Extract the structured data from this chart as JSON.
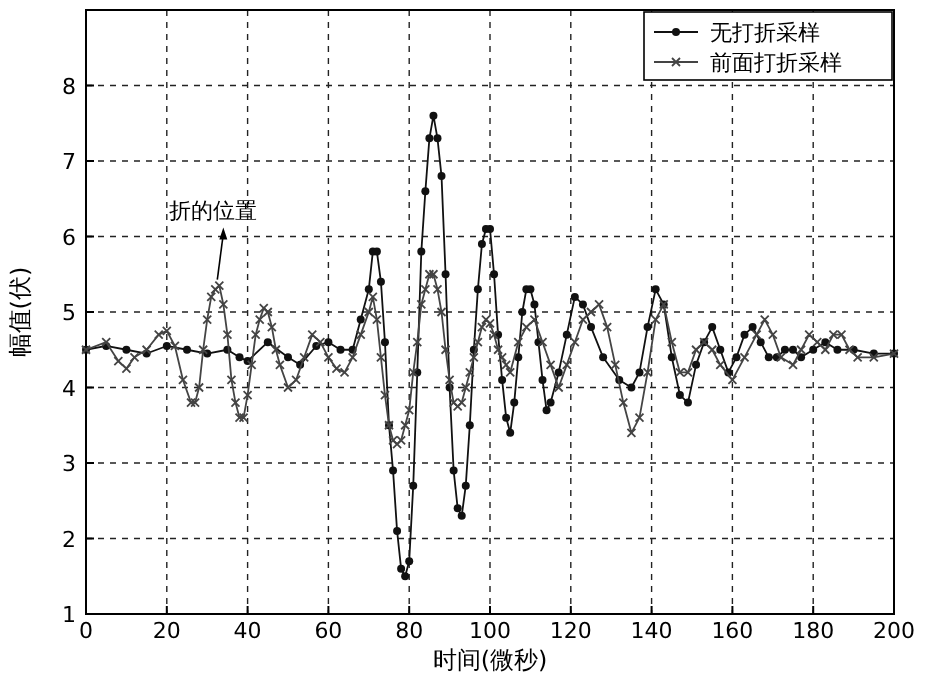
{
  "chart_data": {
    "type": "line",
    "xlabel": "时间(微秒)",
    "ylabel": "幅值(伏)",
    "xlim": [
      0,
      200
    ],
    "ylim": [
      1,
      9
    ],
    "xticks": [
      0,
      20,
      40,
      60,
      80,
      100,
      120,
      140,
      160,
      180,
      200
    ],
    "yticks": [
      1,
      2,
      3,
      4,
      5,
      6,
      7,
      8
    ],
    "grid": true,
    "legend": "top right",
    "line_style": "solid",
    "annotations": [
      {
        "text": "折的位置",
        "x": 33,
        "y": 5.35
      }
    ],
    "series": [
      {
        "name": "无打折采样",
        "color": "#111111",
        "marker": "circle",
        "x": [
          0,
          5,
          10,
          15,
          20,
          25,
          30,
          35,
          38,
          40,
          45,
          50,
          53,
          57,
          60,
          63,
          66,
          68,
          70,
          71,
          72,
          73,
          74,
          75,
          76,
          77,
          78,
          79,
          80,
          81,
          82,
          83,
          84,
          85,
          86,
          87,
          88,
          89,
          90,
          91,
          92,
          93,
          94,
          95,
          96,
          97,
          98,
          99,
          100,
          101,
          102,
          103,
          104,
          105,
          106,
          107,
          108,
          109,
          110,
          111,
          112,
          113,
          114,
          115,
          117,
          119,
          121,
          123,
          125,
          128,
          132,
          135,
          137,
          139,
          141,
          143,
          145,
          147,
          149,
          151,
          153,
          155,
          157,
          159,
          161,
          163,
          165,
          167,
          169,
          171,
          173,
          175,
          177,
          180,
          183,
          186,
          190,
          195,
          200
        ],
        "values": [
          4.5,
          4.55,
          4.5,
          4.45,
          4.55,
          4.5,
          4.45,
          4.5,
          4.4,
          4.35,
          4.6,
          4.4,
          4.3,
          4.55,
          4.6,
          4.5,
          4.5,
          4.9,
          5.3,
          5.8,
          5.8,
          5.4,
          4.6,
          3.5,
          2.9,
          2.1,
          1.6,
          1.5,
          1.7,
          2.7,
          4.2,
          5.8,
          6.6,
          7.3,
          7.6,
          7.3,
          6.8,
          5.5,
          4.0,
          2.9,
          2.4,
          2.3,
          2.7,
          3.5,
          4.5,
          5.3,
          5.9,
          6.1,
          6.1,
          5.5,
          4.7,
          4.1,
          3.6,
          3.4,
          3.8,
          4.4,
          5.0,
          5.3,
          5.3,
          5.1,
          4.6,
          4.1,
          3.7,
          3.8,
          4.2,
          4.7,
          5.2,
          5.1,
          4.8,
          4.4,
          4.1,
          4.0,
          4.2,
          4.8,
          5.3,
          5.1,
          4.4,
          3.9,
          3.8,
          4.3,
          4.6,
          4.8,
          4.5,
          4.2,
          4.4,
          4.7,
          4.8,
          4.6,
          4.4,
          4.4,
          4.5,
          4.5,
          4.4,
          4.5,
          4.6,
          4.5,
          4.5,
          4.45,
          4.45
        ]
      },
      {
        "name": "前面打折采样",
        "color": "#444444",
        "marker": "cross",
        "x": [
          0,
          5,
          8,
          10,
          12,
          15,
          18,
          20,
          22,
          24,
          26,
          27,
          28,
          29,
          30,
          31,
          32,
          33,
          34,
          35,
          36,
          37,
          38,
          39,
          40,
          41,
          42,
          43,
          44,
          45,
          46,
          47,
          48,
          50,
          52,
          54,
          56,
          58,
          60,
          62,
          64,
          66,
          68,
          70,
          71,
          72,
          73,
          74,
          75,
          76,
          77,
          78,
          79,
          80,
          81,
          82,
          83,
          84,
          85,
          86,
          87,
          88,
          89,
          90,
          91,
          92,
          93,
          94,
          95,
          96,
          97,
          98,
          99,
          100,
          101,
          102,
          103,
          104,
          105,
          107,
          109,
          111,
          113,
          115,
          117,
          119,
          121,
          123,
          125,
          127,
          129,
          131,
          133,
          135,
          137,
          139,
          141,
          143,
          145,
          147,
          149,
          151,
          153,
          155,
          157,
          160,
          163,
          166,
          168,
          170,
          172,
          175,
          177,
          179,
          181,
          183,
          185,
          187,
          189,
          191,
          195,
          200
        ],
        "values": [
          4.5,
          4.6,
          4.35,
          4.25,
          4.4,
          4.5,
          4.7,
          4.75,
          4.55,
          4.1,
          3.8,
          3.8,
          4.0,
          4.5,
          4.9,
          5.2,
          5.3,
          5.35,
          5.1,
          4.7,
          4.1,
          3.8,
          3.6,
          3.6,
          3.9,
          4.3,
          4.7,
          4.9,
          5.05,
          5.0,
          4.8,
          4.5,
          4.3,
          4.0,
          4.1,
          4.4,
          4.7,
          4.6,
          4.4,
          4.25,
          4.2,
          4.4,
          4.7,
          5.0,
          5.2,
          4.9,
          4.4,
          3.9,
          3.5,
          3.3,
          3.25,
          3.3,
          3.5,
          3.7,
          4.2,
          4.6,
          5.1,
          5.3,
          5.5,
          5.5,
          5.3,
          5.0,
          4.5,
          4.1,
          3.8,
          3.75,
          3.8,
          4.0,
          4.2,
          4.4,
          4.6,
          4.8,
          4.9,
          4.85,
          4.7,
          4.5,
          4.4,
          4.3,
          4.2,
          4.6,
          4.8,
          4.9,
          4.6,
          4.3,
          4.0,
          4.3,
          4.6,
          4.9,
          5.0,
          5.1,
          4.8,
          4.3,
          3.8,
          3.4,
          3.6,
          4.2,
          4.9,
          5.1,
          4.6,
          4.2,
          4.2,
          4.5,
          4.6,
          4.5,
          4.3,
          4.1,
          4.4,
          4.7,
          4.9,
          4.7,
          4.4,
          4.3,
          4.5,
          4.7,
          4.6,
          4.5,
          4.7,
          4.7,
          4.5,
          4.4,
          4.4,
          4.45
        ]
      }
    ]
  }
}
